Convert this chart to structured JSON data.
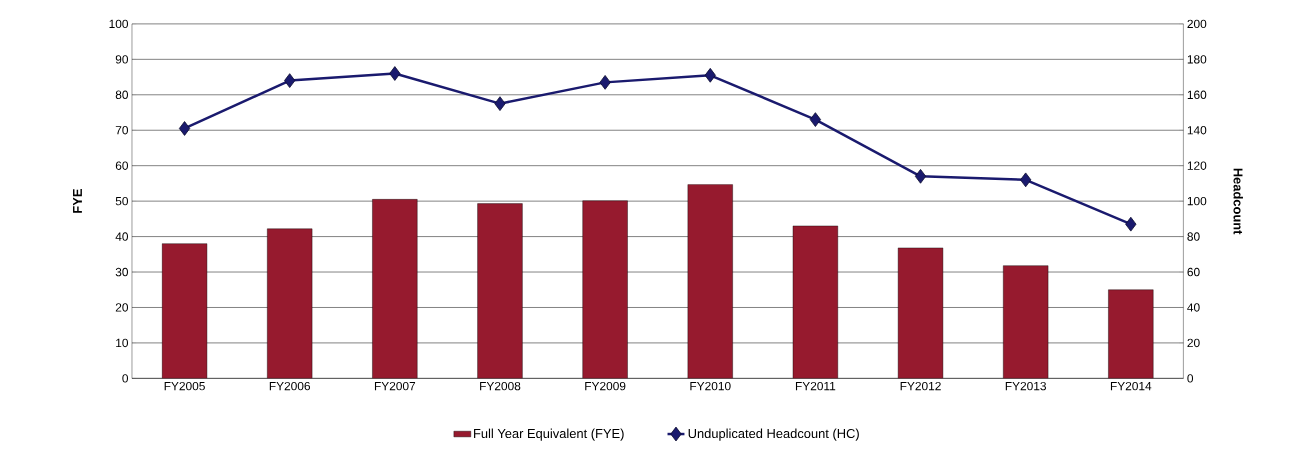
{
  "chart_data": {
    "type": "bar",
    "categories": [
      "FY2005",
      "FY2006",
      "FY2007",
      "FY2008",
      "FY2009",
      "FY2010",
      "FY2011",
      "FY2012",
      "FY2013",
      "FY2014"
    ],
    "series": [
      {
        "name": "Full Year Equivalent (FYE)",
        "color": "#961a2e",
        "values": [
          38,
          42.2,
          50.5,
          49.3,
          50.1,
          54.7,
          43,
          36.8,
          31.8,
          25
        ]
      },
      {
        "name": "Unduplicated Headcount (HC)",
        "type": "line",
        "axis": "y2",
        "color": "#1a1a6e",
        "values": [
          141,
          168,
          172,
          155,
          167,
          171,
          146,
          114,
          112,
          87
        ]
      }
    ],
    "ylabel": "FYE",
    "y2label": "Headcount",
    "ylim": [
      0,
      100
    ],
    "yticks": [
      0,
      10,
      20,
      30,
      40,
      50,
      60,
      70,
      80,
      90,
      100
    ],
    "y2lim": [
      0,
      200
    ],
    "y2ticks": [
      0,
      20,
      40,
      60,
      80,
      100,
      120,
      140,
      160,
      180,
      200
    ],
    "grid": "y",
    "legend": "bottom",
    "marker": "diamond"
  }
}
